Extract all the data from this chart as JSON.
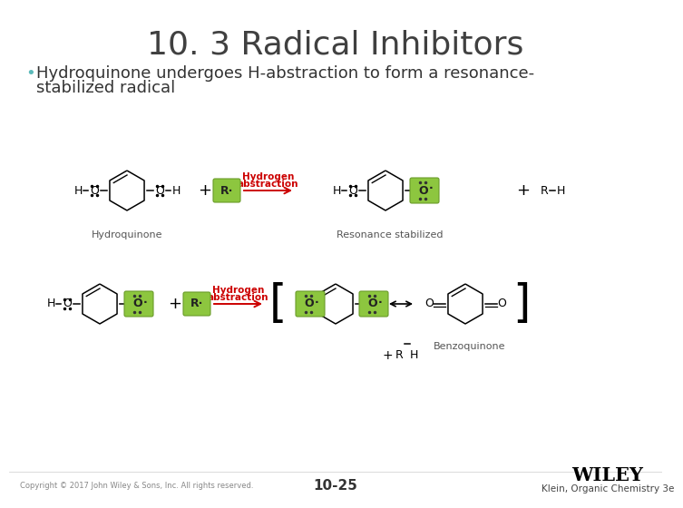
{
  "title": "10. 3 Radical Inhibitors",
  "bullet_text_line1": "  Hydroquinone undergoes H-abstraction to form a resonance-",
  "bullet_text_line2": "  stabilized radical",
  "bullet_color": "#5BBABA",
  "title_color": "#404040",
  "background_color": "#FFFFFF",
  "footer_copyright": "Copyright © 2017 John Wiley & Sons, Inc. All rights reserved.",
  "footer_page": "10-25",
  "footer_right": "Klein, Organic Chemistry 3e",
  "wiley_text": "WILEY",
  "footer_color": "#888888",
  "title_fontsize": 26,
  "bullet_fontsize": 13,
  "green_box_color": "#8DC63F",
  "red_text_color": "#CC0000",
  "label_color": "#555555"
}
